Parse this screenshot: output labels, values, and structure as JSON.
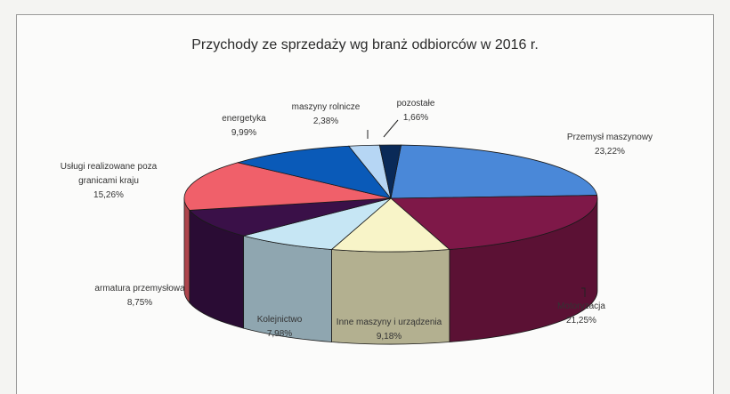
{
  "chart_data": {
    "type": "pie",
    "title": "Przychody ze sprzedaży wg branż odbiorców w 2016 r.",
    "slices": [
      {
        "label": "Przemysł maszynowy",
        "value": 23.22,
        "display": "23,22%",
        "color": "#4a88d8"
      },
      {
        "label": "Motoryzacja",
        "value": 21.25,
        "display": "21,25%",
        "color": "#7e1848"
      },
      {
        "label": "Inne maszyny i urządzenia",
        "value": 9.18,
        "display": "9,18%",
        "color": "#f8f4c8"
      },
      {
        "label": "Kolejnictwo",
        "value": 7.98,
        "display": "7,98%",
        "color": "#c6e6f4"
      },
      {
        "label": "armatura przemysłowa",
        "value": 8.75,
        "display": "8,75%",
        "color": "#3a1048"
      },
      {
        "label": "Usługi realizowane poza granicami kraju",
        "value": 15.26,
        "display": "15,26%",
        "color": "#f0606a"
      },
      {
        "label": "energetyka",
        "value": 9.99,
        "display": "9,99%",
        "color": "#0a5ab8"
      },
      {
        "label": "maszyny rolnicze",
        "value": 2.38,
        "display": "2,38%",
        "color": "#b6d6f4"
      },
      {
        "label": "pozostałe",
        "value": 1.66,
        "display": "1,66%",
        "color": "#0a2a58"
      }
    ],
    "legend": "none",
    "view": "3d"
  }
}
